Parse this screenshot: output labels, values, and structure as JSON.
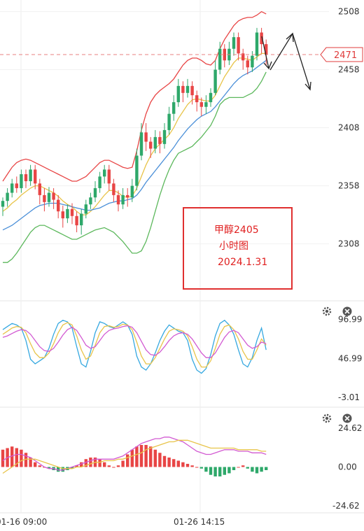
{
  "chart_data": [
    {
      "type": "candlestick",
      "panel": "price",
      "title": "",
      "y_ticks": [
        "2508",
        "2458",
        "2408",
        "2358",
        "2308"
      ],
      "ylim": [
        2265,
        2518
      ],
      "current_price": "2471",
      "annotation": {
        "lines": [
          "甲醇2405",
          "小时图",
          "2024.1.31"
        ]
      },
      "candles": [
        [
          2340,
          2345,
          2332,
          2348
        ],
        [
          2345,
          2352,
          2340,
          2356
        ],
        [
          2352,
          2360,
          2348,
          2364
        ],
        [
          2360,
          2356,
          2352,
          2366
        ],
        [
          2356,
          2368,
          2352,
          2372
        ],
        [
          2368,
          2362,
          2356,
          2372
        ],
        [
          2362,
          2372,
          2358,
          2376
        ],
        [
          2372,
          2360,
          2355,
          2376
        ],
        [
          2360,
          2350,
          2342,
          2364
        ],
        [
          2350,
          2344,
          2336,
          2356
        ],
        [
          2344,
          2352,
          2340,
          2357
        ],
        [
          2352,
          2346,
          2338,
          2356
        ],
        [
          2346,
          2336,
          2330,
          2350
        ],
        [
          2336,
          2330,
          2322,
          2341
        ],
        [
          2330,
          2338,
          2326,
          2342
        ],
        [
          2338,
          2332,
          2325,
          2343
        ],
        [
          2332,
          2324,
          2318,
          2336
        ],
        [
          2324,
          2334,
          2316,
          2338
        ],
        [
          2334,
          2342,
          2330,
          2346
        ],
        [
          2342,
          2348,
          2338,
          2352
        ],
        [
          2348,
          2356,
          2344,
          2362
        ],
        [
          2356,
          2366,
          2352,
          2370
        ],
        [
          2366,
          2372,
          2360,
          2376
        ],
        [
          2372,
          2360,
          2354,
          2376
        ],
        [
          2360,
          2350,
          2344,
          2364
        ],
        [
          2350,
          2342,
          2336,
          2354
        ],
        [
          2342,
          2350,
          2338,
          2356
        ],
        [
          2350,
          2348,
          2340,
          2356
        ],
        [
          2348,
          2358,
          2344,
          2364
        ],
        [
          2358,
          2384,
          2354,
          2390
        ],
        [
          2384,
          2404,
          2380,
          2412
        ],
        [
          2404,
          2396,
          2388,
          2412
        ],
        [
          2396,
          2390,
          2382,
          2400
        ],
        [
          2390,
          2400,
          2386,
          2406
        ],
        [
          2400,
          2394,
          2386,
          2405
        ],
        [
          2394,
          2406,
          2390,
          2412
        ],
        [
          2406,
          2420,
          2402,
          2426
        ],
        [
          2420,
          2430,
          2414,
          2436
        ],
        [
          2430,
          2444,
          2426,
          2450
        ],
        [
          2444,
          2438,
          2430,
          2448
        ],
        [
          2438,
          2444,
          2434,
          2450
        ],
        [
          2444,
          2436,
          2428,
          2448
        ],
        [
          2436,
          2430,
          2422,
          2440
        ],
        [
          2430,
          2426,
          2418,
          2434
        ],
        [
          2426,
          2430,
          2420,
          2436
        ],
        [
          2430,
          2438,
          2426,
          2442
        ],
        [
          2438,
          2458,
          2436,
          2466
        ],
        [
          2458,
          2476,
          2454,
          2482
        ],
        [
          2476,
          2466,
          2460,
          2480
        ],
        [
          2466,
          2476,
          2462,
          2482
        ],
        [
          2476,
          2486,
          2470,
          2490
        ],
        [
          2486,
          2472,
          2466,
          2490
        ],
        [
          2472,
          2466,
          2458,
          2476
        ],
        [
          2466,
          2460,
          2454,
          2470
        ],
        [
          2460,
          2470,
          2456,
          2474
        ],
        [
          2470,
          2490,
          2466,
          2494
        ],
        [
          2490,
          2480,
          2472,
          2494
        ],
        [
          2480,
          2471,
          2462,
          2484
        ]
      ],
      "series": [
        {
          "name": "",
          "color": "#e8c44a",
          "values": [
            2336,
            2339,
            2343,
            2346,
            2350,
            2353,
            2356,
            2358,
            2358,
            2356,
            2354,
            2352,
            2349,
            2345,
            2342,
            2340,
            2336,
            2333,
            2333,
            2336,
            2340,
            2345,
            2350,
            2354,
            2354,
            2352,
            2349,
            2348,
            2349,
            2356,
            2366,
            2376,
            2384,
            2390,
            2394,
            2398,
            2402,
            2408,
            2416,
            2422,
            2428,
            2432,
            2433,
            2432,
            2431,
            2431,
            2436,
            2444,
            2452,
            2458,
            2464,
            2468,
            2468,
            2467,
            2466,
            2469,
            2472,
            2472
          ]
        },
        {
          "name": "",
          "color": "#4a8fd8",
          "values": [
            2320,
            2322,
            2324,
            2327,
            2330,
            2333,
            2336,
            2339,
            2341,
            2342,
            2343,
            2343,
            2343,
            2342,
            2341,
            2340,
            2339,
            2338,
            2337,
            2337,
            2338,
            2339,
            2341,
            2343,
            2344,
            2345,
            2345,
            2346,
            2347,
            2350,
            2355,
            2361,
            2366,
            2371,
            2376,
            2381,
            2386,
            2391,
            2397,
            2402,
            2407,
            2411,
            2415,
            2418,
            2420,
            2422,
            2426,
            2431,
            2436,
            2441,
            2446,
            2450,
            2453,
            2455,
            2457,
            2460,
            2463,
            2466
          ]
        },
        {
          "name": "",
          "color": "#e84545",
          "values": [
            2362,
            2368,
            2374,
            2378,
            2380,
            2381,
            2380,
            2378,
            2376,
            2374,
            2372,
            2370,
            2368,
            2366,
            2364,
            2362,
            2362,
            2364,
            2366,
            2370,
            2374,
            2378,
            2380,
            2380,
            2378,
            2376,
            2374,
            2373,
            2374,
            2388,
            2406,
            2420,
            2430,
            2436,
            2440,
            2443,
            2446,
            2450,
            2456,
            2462,
            2466,
            2468,
            2468,
            2466,
            2463,
            2462,
            2466,
            2476,
            2484,
            2490,
            2496,
            2500,
            2502,
            2503,
            2503,
            2505,
            2508,
            2506
          ]
        },
        {
          "name": "",
          "color": "#5cb85c",
          "values": [
            2292,
            2292,
            2295,
            2300,
            2306,
            2312,
            2318,
            2322,
            2324,
            2324,
            2322,
            2320,
            2318,
            2316,
            2314,
            2312,
            2312,
            2314,
            2316,
            2318,
            2320,
            2321,
            2322,
            2320,
            2318,
            2314,
            2310,
            2305,
            2300,
            2300,
            2302,
            2310,
            2322,
            2336,
            2350,
            2362,
            2372,
            2380,
            2386,
            2388,
            2390,
            2392,
            2396,
            2400,
            2405,
            2410,
            2418,
            2428,
            2432,
            2434,
            2434,
            2434,
            2434,
            2436,
            2438,
            2442,
            2448,
            2456
          ]
        }
      ]
    },
    {
      "type": "line",
      "panel": "oscillator",
      "y_ticks": [
        "96.99",
        "46.99",
        "-3.01"
      ],
      "ylim": [
        -12,
        112
      ],
      "series": [
        {
          "name": "",
          "color": "#35a8e0",
          "values": [
            84,
            88,
            92,
            90,
            86,
            70,
            46,
            40,
            44,
            48,
            60,
            78,
            92,
            96,
            94,
            86,
            62,
            40,
            36,
            56,
            80,
            94,
            92,
            88,
            86,
            90,
            94,
            90,
            78,
            50,
            36,
            32,
            40,
            54,
            70,
            82,
            90,
            86,
            82,
            80,
            70,
            46,
            32,
            28,
            34,
            52,
            76,
            92,
            96,
            90,
            78,
            58,
            40,
            36,
            48,
            70,
            86,
            58
          ]
        },
        {
          "name": "",
          "color": "#e8c44a",
          "values": [
            78,
            82,
            86,
            88,
            87,
            80,
            66,
            54,
            48,
            48,
            54,
            66,
            80,
            90,
            93,
            90,
            76,
            58,
            46,
            50,
            64,
            80,
            88,
            89,
            87,
            88,
            91,
            90,
            84,
            68,
            50,
            40,
            40,
            48,
            60,
            72,
            82,
            85,
            84,
            82,
            76,
            62,
            46,
            36,
            36,
            44,
            60,
            78,
            88,
            90,
            84,
            72,
            56,
            46,
            46,
            58,
            72,
            64
          ]
        },
        {
          "name": "",
          "color": "#d25ad2",
          "values": [
            74,
            76,
            79,
            82,
            84,
            83,
            78,
            70,
            62,
            57,
            56,
            60,
            68,
            77,
            84,
            87,
            83,
            74,
            64,
            60,
            62,
            70,
            78,
            83,
            85,
            86,
            88,
            89,
            87,
            80,
            69,
            58,
            52,
            51,
            55,
            62,
            70,
            76,
            79,
            80,
            78,
            72,
            63,
            54,
            48,
            48,
            54,
            64,
            74,
            81,
            83,
            80,
            72,
            64,
            60,
            62,
            68,
            66
          ]
        }
      ]
    },
    {
      "type": "bar+line",
      "panel": "macd",
      "y_ticks": [
        "24.62",
        "0.00",
        "-24.62"
      ],
      "ylim": [
        -30,
        30
      ],
      "histogram": [
        11,
        12,
        13,
        12,
        11,
        9,
        6,
        3,
        1,
        0,
        -1,
        -2,
        -3,
        -3,
        -2,
        -1,
        1,
        3,
        5,
        6,
        6,
        5,
        3,
        1,
        0,
        1,
        4,
        8,
        11,
        13,
        14,
        14,
        13,
        11,
        9,
        7,
        6,
        5,
        4,
        3,
        2,
        1,
        0,
        -1,
        -3,
        -5,
        -6,
        -6,
        -5,
        -4,
        -2,
        0,
        1,
        -1,
        -3,
        -4,
        -3,
        -2
      ],
      "series": [
        {
          "name": "",
          "color": "#d25ad2",
          "values": [
            4,
            6,
            7,
            8,
            8,
            7,
            6,
            4,
            2,
            0,
            -1,
            -1,
            -2,
            -2,
            -1,
            0,
            1,
            2,
            3,
            4,
            5,
            5,
            5,
            5,
            5,
            6,
            7,
            9,
            11,
            13,
            15,
            16,
            17,
            18,
            18,
            19,
            19,
            18,
            17,
            16,
            14,
            12,
            10,
            9,
            8,
            8,
            9,
            10,
            11,
            11,
            11,
            10,
            10,
            10,
            9,
            9,
            9,
            8
          ]
        },
        {
          "name": "",
          "color": "#e8c44a",
          "values": [
            -4,
            -2,
            0,
            2,
            4,
            5,
            5,
            5,
            4,
            3,
            2,
            1,
            0,
            -1,
            -1,
            -1,
            0,
            0,
            1,
            2,
            3,
            3,
            4,
            4,
            4,
            5,
            5,
            6,
            7,
            8,
            9,
            11,
            12,
            13,
            14,
            15,
            16,
            16,
            17,
            17,
            17,
            16,
            15,
            14,
            13,
            12,
            12,
            12,
            12,
            12,
            12,
            11,
            11,
            11,
            11,
            11,
            10,
            10
          ]
        }
      ]
    }
  ],
  "time_axis": {
    "labels": [
      "01-16 09:00",
      "01-26 14:15"
    ]
  },
  "panel_controls": {
    "settings_icon": "gear-icon",
    "close_icon": "close-icon"
  },
  "colors": {
    "up": "#2ea86a",
    "down": "#e84545",
    "accent": "#e03c3c"
  }
}
